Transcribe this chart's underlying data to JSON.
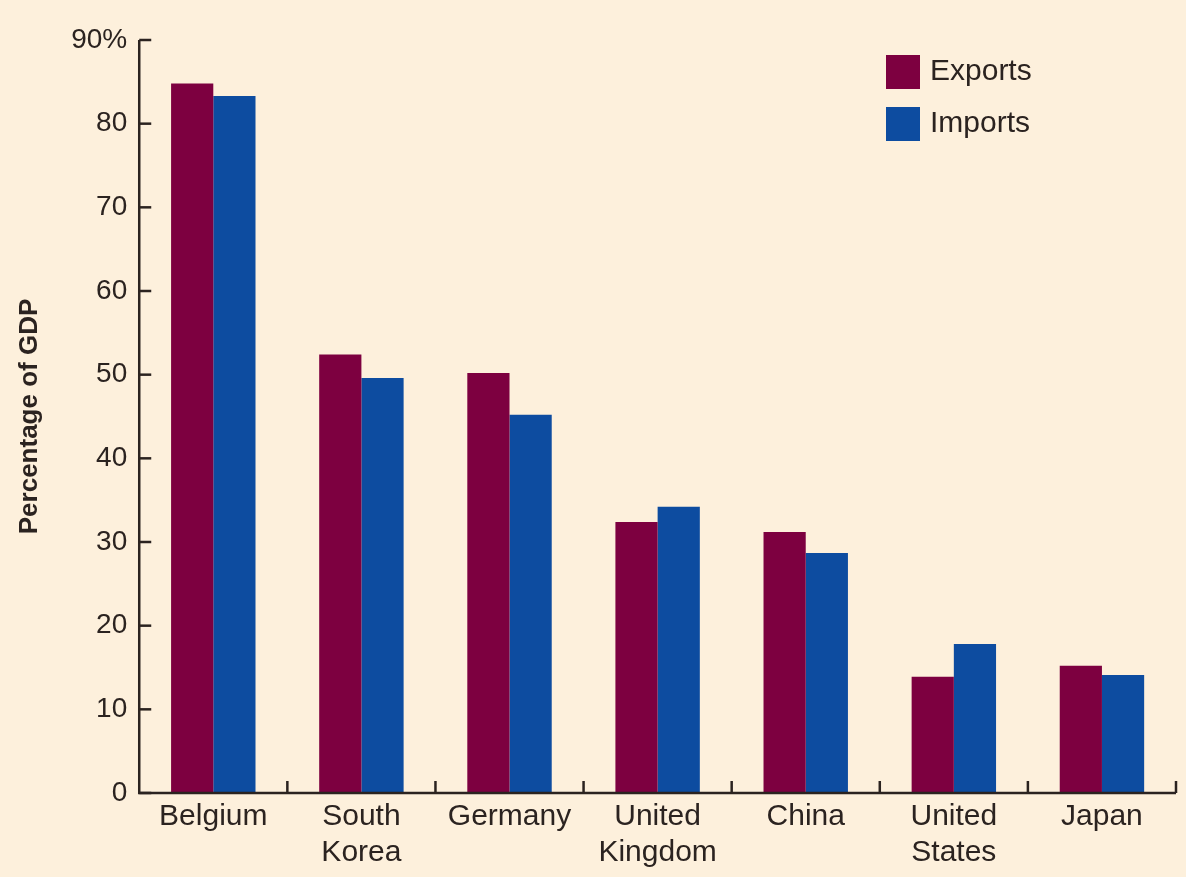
{
  "chart_data": {
    "type": "bar",
    "ylabel": "Percentage of GDP",
    "categories": [
      "Belgium",
      "South Korea",
      "Germany",
      "United Kingdom",
      "China",
      "United States",
      "Japan"
    ],
    "series": [
      {
        "name": "Exports",
        "color": "#7d0040",
        "values": [
          84.8,
          52.4,
          50.2,
          32.4,
          31.2,
          13.9,
          15.2
        ]
      },
      {
        "name": "Imports",
        "color": "#0d4ca0",
        "values": [
          83.3,
          49.6,
          45.2,
          34.2,
          28.7,
          17.8,
          14.1
        ]
      }
    ],
    "ylim": [
      0,
      90
    ],
    "yticks": [
      0,
      10,
      20,
      30,
      40,
      50,
      60,
      70,
      80,
      {
        "value": 90,
        "label": "90%"
      }
    ],
    "grid": false,
    "legend": "top right"
  }
}
